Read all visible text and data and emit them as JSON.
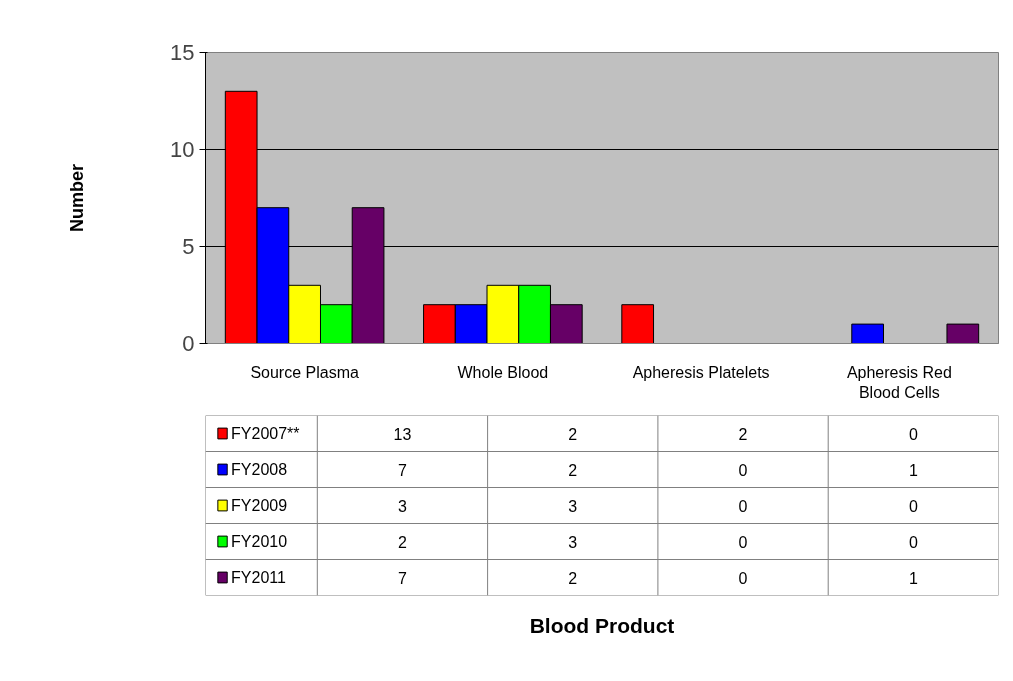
{
  "chart_data": {
    "type": "bar",
    "annotations": [
      "Blood Product"
    ],
    "ylabel": "Number",
    "categories": [
      "Source Plasma",
      "Whole Blood",
      "Apheresis Platelets",
      "Apheresis Red Blood Cells"
    ],
    "series": [
      {
        "name": "FY2007**",
        "color": "#ff0000",
        "values": [
          13,
          2,
          2,
          0
        ]
      },
      {
        "name": "FY2008",
        "color": "#0000ff",
        "values": [
          7,
          2,
          0,
          1
        ]
      },
      {
        "name": "FY2009",
        "color": "#ffff00",
        "values": [
          3,
          3,
          0,
          0
        ]
      },
      {
        "name": "FY2010",
        "color": "#00ff00",
        "values": [
          2,
          3,
          0,
          0
        ]
      },
      {
        "name": "FY2011",
        "color": "#660066",
        "values": [
          7,
          2,
          0,
          1
        ]
      }
    ],
    "ylim": [
      0,
      15
    ],
    "yticks": [
      0,
      5,
      10,
      15
    ],
    "grid": "y",
    "data_labels": true,
    "legend": "bottom left"
  }
}
